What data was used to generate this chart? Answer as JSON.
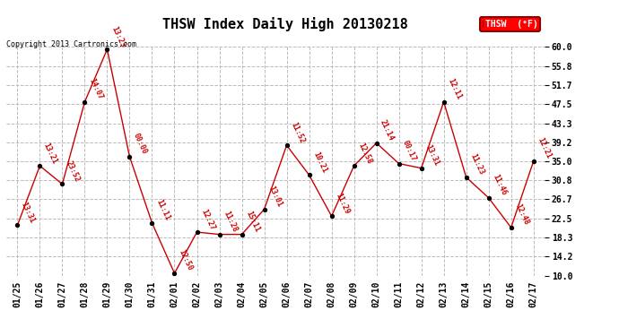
{
  "title": "THSW Index Daily High 20130218",
  "copyright": "Copyright 2013 Cartronics.com",
  "legend_label": "THSW  (°F)",
  "dates": [
    "01/25",
    "01/26",
    "01/27",
    "01/28",
    "01/29",
    "01/30",
    "01/31",
    "02/01",
    "02/02",
    "02/03",
    "02/04",
    "02/05",
    "02/06",
    "02/07",
    "02/08",
    "02/09",
    "02/10",
    "02/11",
    "02/12",
    "02/13",
    "02/14",
    "02/15",
    "02/16",
    "02/17"
  ],
  "values": [
    21.0,
    34.0,
    30.0,
    48.0,
    59.5,
    36.0,
    21.5,
    10.5,
    19.5,
    19.0,
    19.0,
    24.5,
    38.5,
    32.0,
    23.0,
    34.0,
    39.0,
    34.5,
    33.5,
    48.0,
    31.5,
    27.0,
    20.5,
    35.0
  ],
  "labels": [
    "13:31",
    "13:21",
    "23:52",
    "14:07",
    "13:23",
    "00:00",
    "11:11",
    "12:50",
    "12:27",
    "11:28",
    "15:11",
    "13:01",
    "11:52",
    "10:21",
    "11:29",
    "12:58",
    "21:14",
    "00:17",
    "13:31",
    "12:11",
    "11:23",
    "11:46",
    "12:48",
    "12:21"
  ],
  "ytick_labels": [
    "10.0",
    "14.2",
    "18.3",
    "22.5",
    "26.7",
    "30.8",
    "35.0",
    "39.2",
    "43.3",
    "47.5",
    "51.7",
    "55.8",
    "60.0"
  ],
  "ytick_vals": [
    10.0,
    14.2,
    18.3,
    22.5,
    26.7,
    30.8,
    35.0,
    39.2,
    43.3,
    47.5,
    51.7,
    55.8,
    60.0
  ],
  "ylim": [
    10.0,
    60.0
  ],
  "line_color": "#cc0000",
  "marker_color": "black",
  "bg_color": "white",
  "grid_color": "#bbbbbb",
  "title_fontsize": 11,
  "label_fontsize": 6,
  "tick_fontsize": 7,
  "copyright_fontsize": 6
}
